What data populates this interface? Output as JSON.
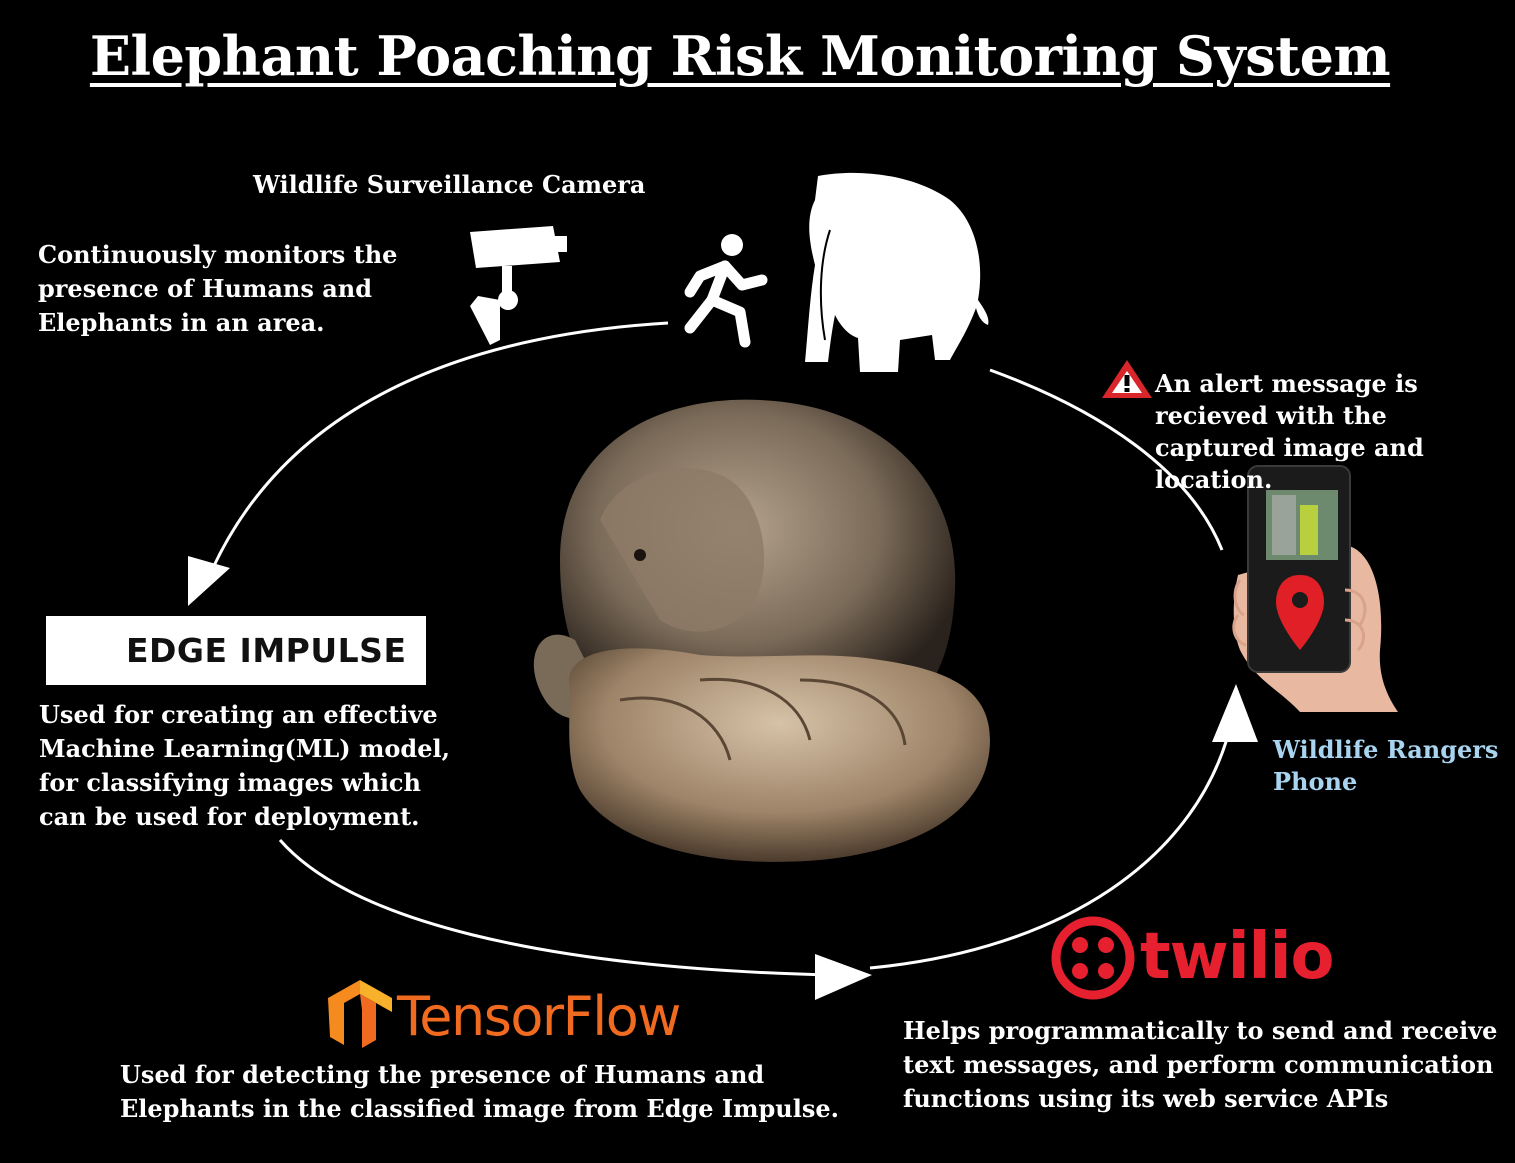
{
  "title": "Elephant Poaching Risk Monitoring System",
  "camera": {
    "title": "Wildlife Surveillance Camera",
    "description": "Continuously monitors the presence of Humans and Elephants in an area."
  },
  "alert": {
    "description": "An alert message is recieved with the captured image and location."
  },
  "ranger": {
    "label": "Wildlife Rangers Phone"
  },
  "edge_impulse": {
    "logo_text": "EDGE IMPULSE",
    "description": "Used for creating an effective Machine Learning(ML) model, for classifying images which can be used for deployment."
  },
  "tensorflow": {
    "logo_text": "TensorFlow",
    "description": "Used for detecting the presence of Humans and Elephants in the classified image from Edge Impulse."
  },
  "twilio": {
    "logo_text": "twilio",
    "description": "Helps programmatically to send and receive text messages, and perform communication functions using its web service APIs"
  },
  "colors": {
    "background": "#000000",
    "text": "#ffffff",
    "ranger_label": "#a9d4f0",
    "tensorflow_orange": "#f06a20",
    "twilio_red": "#e6202f",
    "alert_red": "#d8262b"
  },
  "icons": [
    "cctv-camera-icon",
    "running-person-icon",
    "elephant-icon",
    "warning-icon",
    "phone-icon",
    "location-pin-icon",
    "edge-impulse-logo",
    "tensorflow-logo",
    "twilio-logo",
    "elephant-in-hands-image"
  ]
}
